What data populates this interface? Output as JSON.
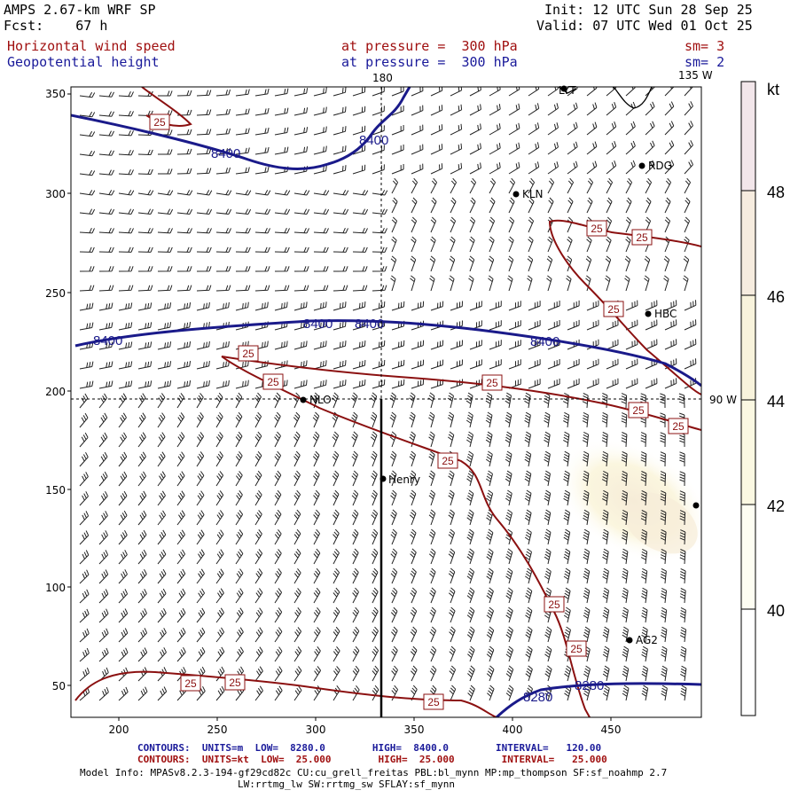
{
  "header": {
    "left_line1": "AMPS 2.67-km WRF SP",
    "left_line2": "Fcst:    67 h",
    "right_line1": "Init: 12 UTC Sun 28 Sep 25",
    "right_line2": "Valid: 07 UTC Wed 01 Oct 25",
    "field1_name": "Horizontal wind speed",
    "field1_level": "at pressure =  300 hPa",
    "field1_smooth": "sm= 3",
    "field2_name": "Geopotential height",
    "field2_level": "at pressure =  300 hPa",
    "field2_smooth": "sm= 2"
  },
  "map": {
    "top_labels": [
      "180",
      "135 W"
    ],
    "side_label": "90 W",
    "y_ticks": [
      "350",
      "300",
      "250",
      "200",
      "150",
      "100",
      "50"
    ],
    "x_ticks": [
      "200",
      "250",
      "300",
      "350",
      "400",
      "450"
    ],
    "stations": [
      "LYT",
      "RDG",
      "KLN",
      "HBC",
      "NLO",
      "Henry",
      "AG2"
    ],
    "height_contour_labels": [
      "8400",
      "8400",
      "8400",
      "8400",
      "8400",
      "8400",
      "8280",
      "8280"
    ],
    "speed_contour_labels": [
      "25",
      "25",
      "25",
      "25",
      "25",
      "25",
      "25",
      "25",
      "25",
      "25",
      "25",
      "25",
      "25",
      "25",
      "25"
    ]
  },
  "colorbar": {
    "unit": "kt",
    "labels": [
      "48",
      "46",
      "44",
      "42",
      "40"
    ],
    "colors": [
      "#f2e6ea",
      "#f6ecdf",
      "#f8f3dc",
      "#fbf8e2",
      "#fdfdf2",
      "#ffffff"
    ]
  },
  "footer": {
    "contours1": "CONTOURS:  UNITS=m  LOW=  8280.0        HIGH=  8400.0        INTERVAL=   120.00",
    "contours2": "CONTOURS:  UNITS=kt  LOW=  25.000        HIGH=  25.000        INTERVAL=   25.000",
    "model_info1": "Model Info: MPASv8.2.3-194-gf29cd82c CU:cu_grell_freitas PBL:bl_mynn MP:mp_thompson SF:sf_noahmp 2.7",
    "model_info2": "LW:rrtmg_lw SW:rrtmg_sw SFLAY:sf_mynn"
  }
}
